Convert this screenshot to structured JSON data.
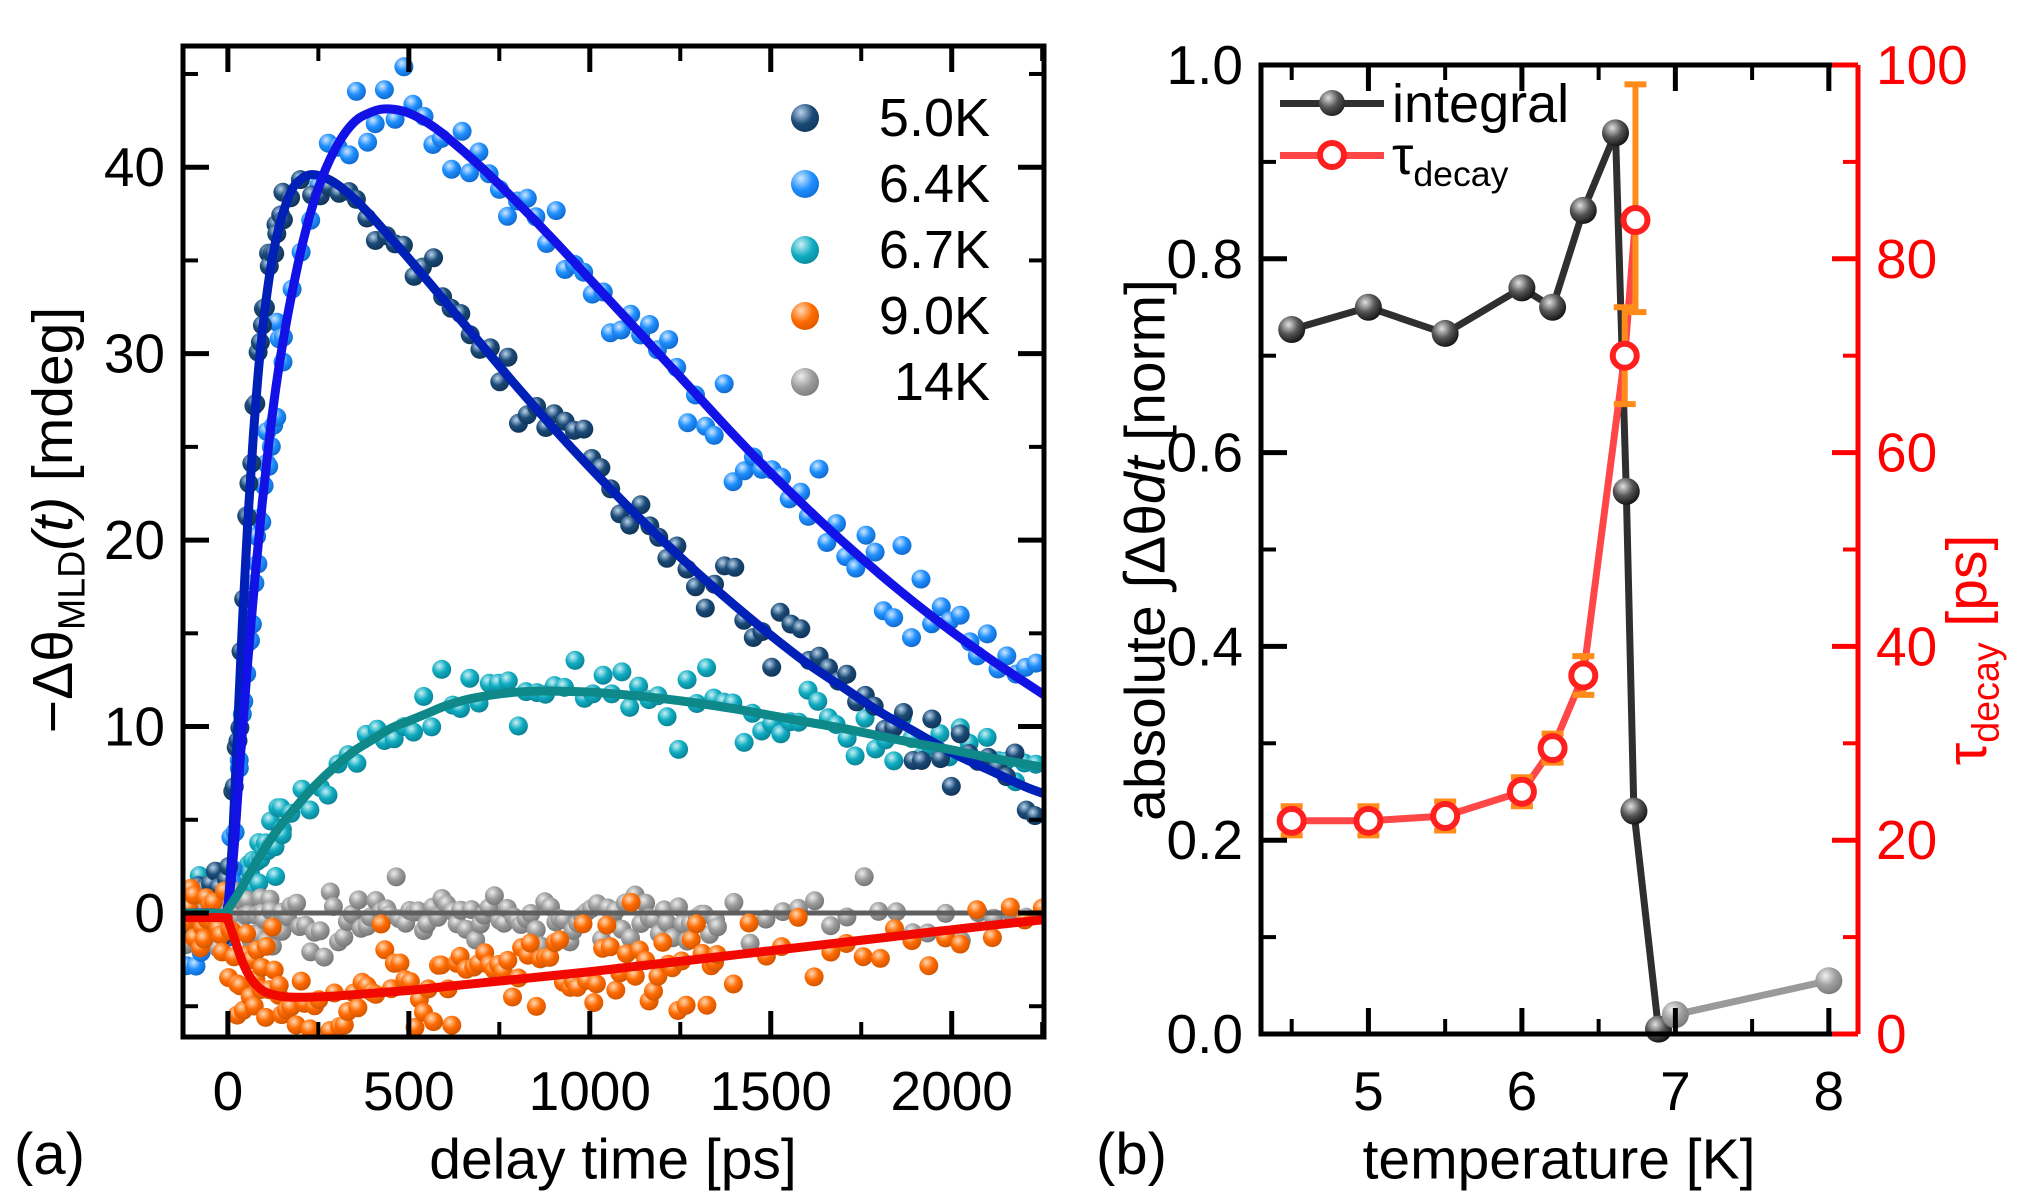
{
  "figure": {
    "panel_a_label": "(a)",
    "panel_b_label": "(b)",
    "background": "#ffffff"
  },
  "chart_data": [
    {
      "type": "scatter",
      "panel": "a",
      "title": "",
      "xlabel": "delay time [ps]",
      "ylabel": "−ΔθMLD(t) [mdeg]",
      "ylabel_parts": {
        "main": "−Δθ",
        "sub": "MLD",
        "arg": "(t)",
        "unit": " [mdeg]"
      },
      "xlim": [
        -124,
        2255
      ],
      "ylim": [
        -6.65,
        46.5
      ],
      "xticks": {
        "values": [
          0,
          500,
          1000,
          1500,
          2000
        ],
        "labels": [
          "0",
          "500",
          "1000",
          "1500",
          "2000"
        ],
        "minor": [
          250,
          750,
          1250,
          1750,
          2250
        ]
      },
      "yticks": {
        "values": [
          0,
          10,
          20,
          30,
          40
        ],
        "labels": [
          "0",
          "10",
          "20",
          "30",
          "40"
        ],
        "minor": [
          -5,
          5,
          15,
          25,
          35,
          45
        ]
      },
      "grid": false,
      "legend_position": "upper right inside",
      "legend": [
        {
          "label": "5.0K",
          "base": "#1a4a77",
          "hi": "#b9d3ea",
          "dark": "#0e2c4d"
        },
        {
          "label": "6.4K",
          "base": "#1e8fff",
          "hi": "#cfe7ff",
          "dark": "#0d5dbb"
        },
        {
          "label": "6.7K",
          "base": "#0fadc2",
          "hi": "#c9f0f5",
          "dark": "#0a7486"
        },
        {
          "label": "9.0K",
          "base": "#ff6a00",
          "hi": "#ffd9b3",
          "dark": "#c24f00"
        },
        {
          "label": "14K",
          "base": "#9b9b9b",
          "hi": "#ececec",
          "dark": "#6a6a6a"
        }
      ],
      "series": [
        {
          "name": "5.0K",
          "marker": "#1a4a77",
          "marker_hi": "#b9d3ea",
          "marker_dark": "#0e2c4d",
          "line": "#0020b8",
          "scatter": {
            "seed": 7,
            "sigma": 0.95,
            "bias": 0,
            "segments": [
              [
                -115,
                150,
                5.5
              ],
              [
                150,
                2255,
                26
              ]
            ]
          },
          "fit": [
            [
              -124,
              0
            ],
            [
              -40,
              0
            ],
            [
              -5,
              0
            ],
            [
              10,
              3
            ],
            [
              25,
              9
            ],
            [
              40,
              15.5
            ],
            [
              55,
              21
            ],
            [
              70,
              25.5
            ],
            [
              85,
              29.2
            ],
            [
              100,
              32
            ],
            [
              120,
              34.8
            ],
            [
              140,
              36.7
            ],
            [
              160,
              38
            ],
            [
              180,
              38.9
            ],
            [
              205,
              39.4
            ],
            [
              230,
              39.6
            ],
            [
              260,
              39.5
            ],
            [
              300,
              39.1
            ],
            [
              350,
              38.3
            ],
            [
              400,
              37.3
            ],
            [
              450,
              36.2
            ],
            [
              500,
              35.1
            ],
            [
              600,
              32.8
            ],
            [
              700,
              30.5
            ],
            [
              800,
              28.2
            ],
            [
              900,
              26
            ],
            [
              1000,
              23.9
            ],
            [
              1100,
              21.9
            ],
            [
              1200,
              20
            ],
            [
              1300,
              18.2
            ],
            [
              1400,
              16.5
            ],
            [
              1500,
              14.9
            ],
            [
              1600,
              13.4
            ],
            [
              1700,
              12.1
            ],
            [
              1800,
              10.8
            ],
            [
              1900,
              9.7
            ],
            [
              2000,
              8.6
            ],
            [
              2100,
              7.7
            ],
            [
              2200,
              6.8
            ],
            [
              2255,
              6.4
            ]
          ]
        },
        {
          "name": "6.4K",
          "marker": "#1e8fff",
          "marker_hi": "#cfe7ff",
          "marker_dark": "#0d5dbb",
          "line": "#1212e6",
          "scatter": {
            "seed": 13,
            "sigma": 1.1,
            "bias": 0,
            "segments": [
              [
                -115,
                150,
                5.5
              ],
              [
                150,
                2255,
                26
              ]
            ]
          },
          "fit": [
            [
              -124,
              0
            ],
            [
              -40,
              0
            ],
            [
              -5,
              0
            ],
            [
              15,
              3
            ],
            [
              35,
              8.5
            ],
            [
              55,
              13.5
            ],
            [
              75,
              18
            ],
            [
              95,
              22
            ],
            [
              115,
              25.5
            ],
            [
              135,
              28.5
            ],
            [
              160,
              31.5
            ],
            [
              185,
              34
            ],
            [
              210,
              36.2
            ],
            [
              240,
              38.3
            ],
            [
              270,
              39.9
            ],
            [
              300,
              41.1
            ],
            [
              330,
              42
            ],
            [
              360,
              42.6
            ],
            [
              390,
              42.9
            ],
            [
              420,
              43.1
            ],
            [
              460,
              43.1
            ],
            [
              500,
              42.9
            ],
            [
              550,
              42.4
            ],
            [
              600,
              41.7
            ],
            [
              700,
              40
            ],
            [
              800,
              38.1
            ],
            [
              900,
              36.1
            ],
            [
              1000,
              34
            ],
            [
              1100,
              31.9
            ],
            [
              1200,
              29.8
            ],
            [
              1300,
              27.7
            ],
            [
              1400,
              25.6
            ],
            [
              1500,
              23.6
            ],
            [
              1600,
              21.7
            ],
            [
              1700,
              19.9
            ],
            [
              1800,
              18.2
            ],
            [
              1900,
              16.6
            ],
            [
              2000,
              15.1
            ],
            [
              2100,
              13.7
            ],
            [
              2200,
              12.4
            ],
            [
              2255,
              11.7
            ]
          ]
        },
        {
          "name": "6.7K",
          "marker": "#0fadc2",
          "marker_hi": "#c9f0f5",
          "marker_dark": "#0a7486",
          "line": "#0e8888",
          "scatter": {
            "seed": 23,
            "sigma": 0.95,
            "bias": 0,
            "segments": [
              [
                -115,
                150,
                5.5
              ],
              [
                150,
                2255,
                26
              ]
            ]
          },
          "fit": [
            [
              -124,
              0
            ],
            [
              -10,
              0
            ],
            [
              0,
              0.2
            ],
            [
              30,
              1.1
            ],
            [
              60,
              2.1
            ],
            [
              90,
              3.1
            ],
            [
              120,
              4
            ],
            [
              150,
              4.8
            ],
            [
              180,
              5.5
            ],
            [
              220,
              6.4
            ],
            [
              260,
              7.2
            ],
            [
              300,
              7.9
            ],
            [
              350,
              8.7
            ],
            [
              400,
              9.3
            ],
            [
              450,
              9.9
            ],
            [
              500,
              10.3
            ],
            [
              550,
              10.7
            ],
            [
              600,
              11.1
            ],
            [
              650,
              11.4
            ],
            [
              700,
              11.6
            ],
            [
              750,
              11.75
            ],
            [
              800,
              11.85
            ],
            [
              850,
              11.9
            ],
            [
              900,
              11.9
            ],
            [
              1000,
              11.85
            ],
            [
              1100,
              11.7
            ],
            [
              1200,
              11.5
            ],
            [
              1300,
              11.25
            ],
            [
              1400,
              10.95
            ],
            [
              1500,
              10.6
            ],
            [
              1600,
              10.25
            ],
            [
              1700,
              9.9
            ],
            [
              1800,
              9.5
            ],
            [
              1900,
              9.1
            ],
            [
              2000,
              8.75
            ],
            [
              2100,
              8.35
            ],
            [
              2200,
              8
            ],
            [
              2255,
              7.8
            ]
          ]
        },
        {
          "name": "9.0K",
          "marker": "#ff6a00",
          "marker_hi": "#ffd9b3",
          "marker_dark": "#c24f00",
          "line": "#f10800",
          "scatter": {
            "seed": 37,
            "sigma": 1.4,
            "bias": -0.1,
            "segments": [
              [
                -115,
                150,
                6
              ],
              [
                150,
                1350,
                13
              ],
              [
                1350,
                2255,
                45
              ]
            ]
          },
          "fit": [
            [
              -124,
              -0.25
            ],
            [
              -10,
              -0.25
            ],
            [
              0,
              -0.4
            ],
            [
              20,
              -1.5
            ],
            [
              40,
              -2.6
            ],
            [
              60,
              -3.4
            ],
            [
              80,
              -3.9
            ],
            [
              100,
              -4.2
            ],
            [
              130,
              -4.4
            ],
            [
              160,
              -4.5
            ],
            [
              200,
              -4.52
            ],
            [
              250,
              -4.5
            ],
            [
              300,
              -4.45
            ],
            [
              400,
              -4.3
            ],
            [
              500,
              -4.15
            ],
            [
              600,
              -3.95
            ],
            [
              700,
              -3.75
            ],
            [
              800,
              -3.55
            ],
            [
              900,
              -3.35
            ],
            [
              1000,
              -3.15
            ],
            [
              1100,
              -2.92
            ],
            [
              1200,
              -2.7
            ],
            [
              1300,
              -2.48
            ],
            [
              1400,
              -2.25
            ],
            [
              1500,
              -2.02
            ],
            [
              1600,
              -1.8
            ],
            [
              1700,
              -1.57
            ],
            [
              1800,
              -1.35
            ],
            [
              1900,
              -1.12
            ],
            [
              2000,
              -0.9
            ],
            [
              2100,
              -0.68
            ],
            [
              2200,
              -0.47
            ],
            [
              2255,
              -0.36
            ]
          ]
        },
        {
          "name": "14K",
          "marker": "#9b9b9b",
          "marker_hi": "#ececec",
          "marker_dark": "#6a6a6a",
          "line": "#5f5f5f",
          "scatter": {
            "seed": 51,
            "sigma": 0.75,
            "bias": -0.2,
            "segments": [
              [
                -115,
                150,
                6
              ],
              [
                150,
                1350,
                13
              ],
              [
                1350,
                2255,
                45
              ]
            ]
          },
          "fit": [
            [
              -124,
              0
            ],
            [
              2255,
              0
            ]
          ]
        }
      ]
    },
    {
      "type": "line",
      "panel": "b",
      "title": "",
      "xlabel": "temperature [K]",
      "ylabel_left": "absolute ∫Δθdt [norm]",
      "ylabel_left_parts": {
        "pre": "absolute ∫Δθ",
        "dt": "dt",
        "unit": " [norm]"
      },
      "ylabel_right": "τdecay [ps]",
      "ylabel_right_parts": {
        "tau": "τ",
        "sub": "decay",
        "unit": " [ps]"
      },
      "xlim": [
        4.3,
        8.19
      ],
      "ylim_left": [
        0,
        1
      ],
      "ylim_right": [
        0,
        100
      ],
      "xticks": {
        "values": [
          5,
          6,
          7,
          8
        ],
        "labels": [
          "5",
          "6",
          "7",
          "8"
        ],
        "minor": [
          4.5,
          5.5,
          6.5,
          7.5
        ]
      },
      "yticks_left": {
        "values": [
          0,
          0.2,
          0.4,
          0.6,
          0.8,
          1.0
        ],
        "labels": [
          "0.0",
          "0.2",
          "0.4",
          "0.6",
          "0.8",
          "1.0"
        ],
        "minor": [
          0.1,
          0.3,
          0.5,
          0.7,
          0.9
        ]
      },
      "yticks_right": {
        "values": [
          0,
          20,
          40,
          60,
          80,
          100
        ],
        "labels": [
          "0",
          "20",
          "40",
          "60",
          "80",
          "100"
        ],
        "minor": [
          10,
          30,
          50,
          70,
          90
        ]
      },
      "right_axis_color": "#ff0000",
      "legend": [
        {
          "label": "integral"
        },
        {
          "parts": {
            "tau": "τ",
            "sub": "decay"
          }
        }
      ],
      "series": [
        {
          "name": "integral",
          "axis": "left",
          "line": "#2f2f2f",
          "marker_style": "black-sphere",
          "points": [
            [
              4.5,
              0.727
            ],
            [
              5.0,
              0.75
            ],
            [
              5.5,
              0.723
            ],
            [
              6.0,
              0.77
            ],
            [
              6.2,
              0.75
            ],
            [
              6.4,
              0.85
            ],
            [
              6.61,
              0.93
            ],
            [
              6.68,
              0.56
            ],
            [
              6.73,
              0.23
            ],
            [
              6.89,
              0.005
            ]
          ],
          "gray_tail": {
            "line": "#9a9a9a",
            "points": [
              [
                6.89,
                0.005
              ],
              [
                7.0,
                0.02
              ],
              [
                8.0,
                0.055
              ]
            ]
          }
        },
        {
          "name": "tau_decay",
          "axis": "right",
          "line": "#ff4747",
          "marker_style": "red-open-circle",
          "error_color": "#ff8c1a",
          "points": [
            [
              4.5,
              22
            ],
            [
              5.0,
              22
            ],
            [
              5.5,
              22.5
            ],
            [
              6.0,
              25
            ],
            [
              6.2,
              29.5
            ],
            [
              6.4,
              37
            ],
            [
              6.67,
              70
            ],
            [
              6.74,
              84
            ]
          ],
          "errors": [
            [
              20.5,
              23.5
            ],
            [
              20.5,
              23.5
            ],
            [
              21,
              24
            ],
            [
              23.5,
              26.5
            ],
            [
              28,
              31
            ],
            [
              35,
              39
            ],
            [
              65,
              75
            ],
            [
              74.5,
              98
            ]
          ]
        }
      ]
    }
  ]
}
